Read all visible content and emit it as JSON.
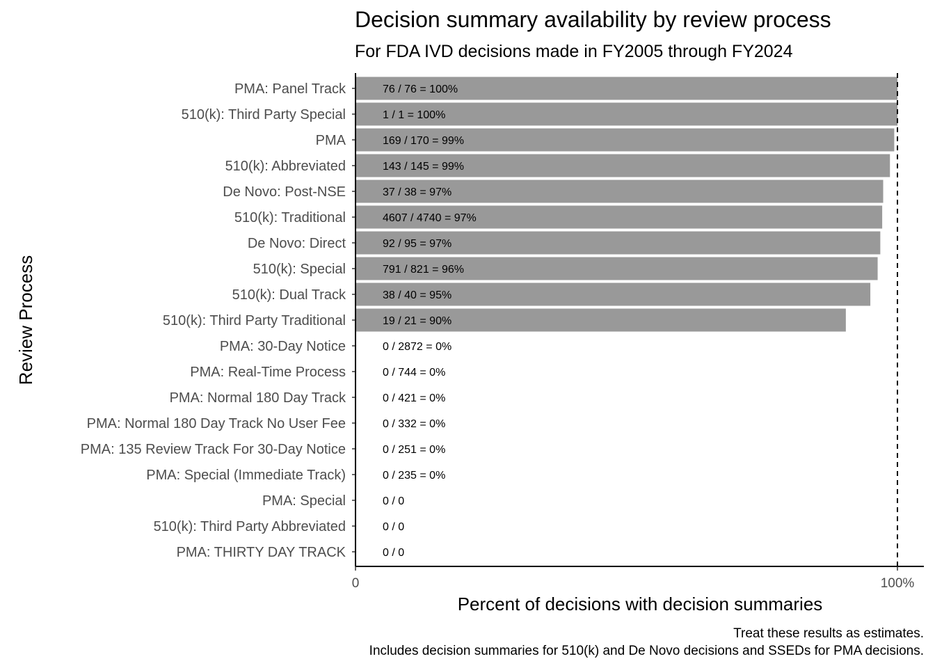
{
  "chart_data": {
    "type": "bar",
    "orientation": "horizontal",
    "title": "Decision summary availability by review process",
    "subtitle": "For FDA IVD decisions made in FY2005 through FY2024",
    "xlabel": "Percent of decisions with decision summaries",
    "ylabel": "Review Process",
    "xlim": [
      0,
      1.0
    ],
    "xtick_labels": [
      "0",
      "100%"
    ],
    "xtick_values": [
      0,
      1.0
    ],
    "reference_line": {
      "x": 1.0,
      "style": "dashed"
    },
    "bar_color": "#999999",
    "grid": false,
    "categories": [
      "PMA: Panel Track",
      "510(k): Third Party Special",
      "PMA",
      "510(k): Abbreviated",
      "De Novo: Post-NSE",
      "510(k): Traditional",
      "De Novo: Direct",
      "510(k): Special",
      "510(k): Dual Track",
      "510(k): Third Party Traditional",
      "PMA: 30-Day Notice",
      "PMA: Real-Time Process",
      "PMA: Normal 180 Day Track",
      "PMA: Normal 180 Day Track No User Fee",
      "PMA: 135 Review Track For 30-Day Notice",
      "PMA: Special (Immediate Track)",
      "PMA: Special",
      "510(k): Third Party Abbreviated",
      "PMA: THIRTY DAY TRACK"
    ],
    "values": [
      1.0,
      1.0,
      0.9941,
      0.9862,
      0.9737,
      0.9719,
      0.9684,
      0.9635,
      0.95,
      0.9048,
      0,
      0,
      0,
      0,
      0,
      0,
      0,
      0,
      0
    ],
    "labels": [
      "76 / 76 = 100%",
      "1 / 1 = 100%",
      "169 / 170 = 99%",
      "143 / 145 = 99%",
      "37 / 38 = 97%",
      "4607 / 4740 = 97%",
      "92 / 95 = 97%",
      "791 / 821 = 96%",
      "38 / 40 = 95%",
      "19 / 21 = 90%",
      "0 / 2872 = 0%",
      "0 / 744 = 0%",
      "0 / 421 = 0%",
      "0 / 332 = 0%",
      "0 / 251 = 0%",
      "0 / 235 = 0%",
      "0 / 0",
      "0 / 0",
      "0 / 0"
    ],
    "caption": [
      "Treat these results as estimates.",
      "Includes decision summaries for 510(k) and De Novo decisions and SSEDs for PMA decisions."
    ]
  }
}
